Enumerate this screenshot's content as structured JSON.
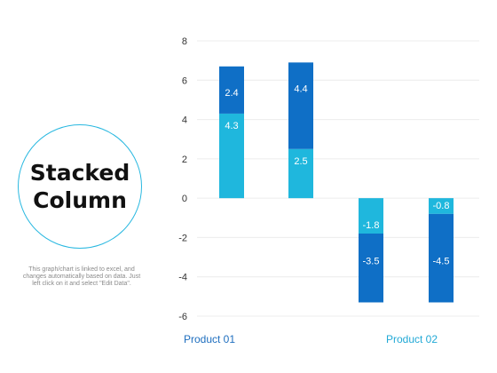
{
  "title_lines": [
    "Stacked",
    "Column"
  ],
  "caption": "This graph/chart is linked to excel, and changes automatically based on data. Just left click on it and select \"Edit Data\".",
  "colors": {
    "dark_blue": "#0f6fc6",
    "light_blue": "#1fb7dd",
    "category_text": "#1f6fbf",
    "category_text_2": "#22a9d6",
    "circle": "#29b8e0",
    "gridline": "#ececec"
  },
  "chart_data": {
    "type": "bar",
    "stacked": true,
    "ylim": [
      -6,
      8
    ],
    "yticks": [
      8,
      6,
      4,
      2,
      0,
      -2,
      -4,
      -6
    ],
    "category_labels": [
      "Product 01",
      "Product 02"
    ],
    "bars": [
      {
        "light": 4.3,
        "dark": 2.4,
        "light_label": "4.3",
        "dark_label": "2.4"
      },
      {
        "light": 2.5,
        "dark": 4.4,
        "light_label": "2.5",
        "dark_label": "4.4"
      },
      {
        "light": -1.8,
        "dark": -3.5,
        "light_label": "-1.8",
        "dark_label": "-3.5"
      },
      {
        "light": -0.8,
        "dark": -4.5,
        "light_label": "-0.8",
        "dark_label": "-4.5"
      }
    ],
    "grid": true
  }
}
